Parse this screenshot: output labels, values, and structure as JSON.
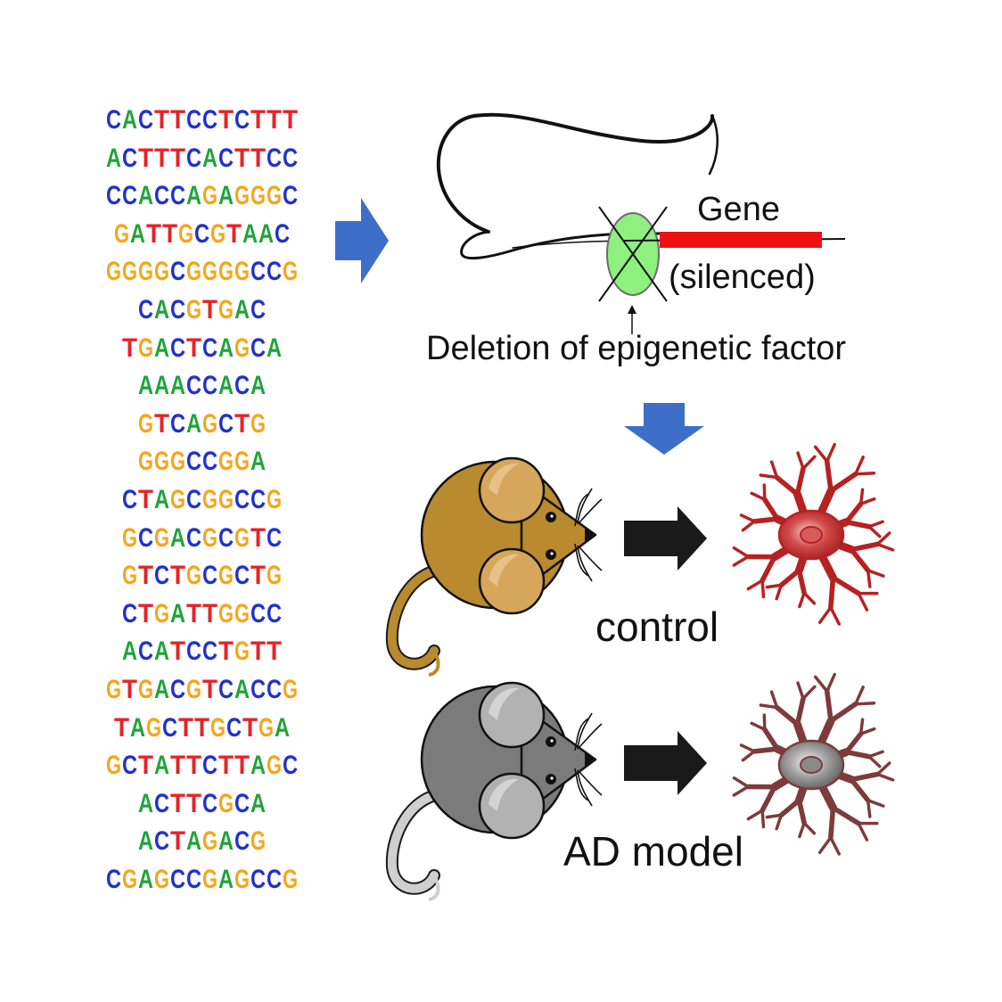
{
  "colors": {
    "A": "#21a33b",
    "C": "#2232c9",
    "G": "#f3a71c",
    "T": "#e5232a",
    "arrow_blue": "#3d6fc9",
    "arrow_black": "#1a1a1a",
    "gene_red": "#ee1111",
    "factor_green": "#8ef07f",
    "mouse_brown": "#b98a2e",
    "mouse_gray": "#7b7b7b",
    "neuron_red": "#b52222",
    "neuron_gray": "#7d3b3b"
  },
  "motifs": [
    "CACTTCCTCTTT",
    "ACTTTCACTTCC",
    "CCACCAGAGGGC",
    "GATTGCGTAAC",
    "GGGGCGGGGCCG",
    "CACGTGAC",
    "TGACTCAGCA",
    "AAACCACA",
    "GTCAGCTG",
    "GGGCCGGA",
    "CTAGCGGCCG",
    "GCGACGCGTC",
    "GTCTGCGCTG",
    "CTGATTGGCC",
    "ACATCCTGTT",
    "GTGACGTCACCG",
    "TAGCTTGCTGA",
    "GCTATTCTTAGC",
    "ACTTCGCA",
    "ACTAGACG",
    "CGAGCCGAGCCG"
  ],
  "labels": {
    "gene": "Gene",
    "silenced": "(silenced)",
    "deletion": "Deletion of epigenetic factor",
    "control": "control",
    "ad_model": "AD model"
  }
}
